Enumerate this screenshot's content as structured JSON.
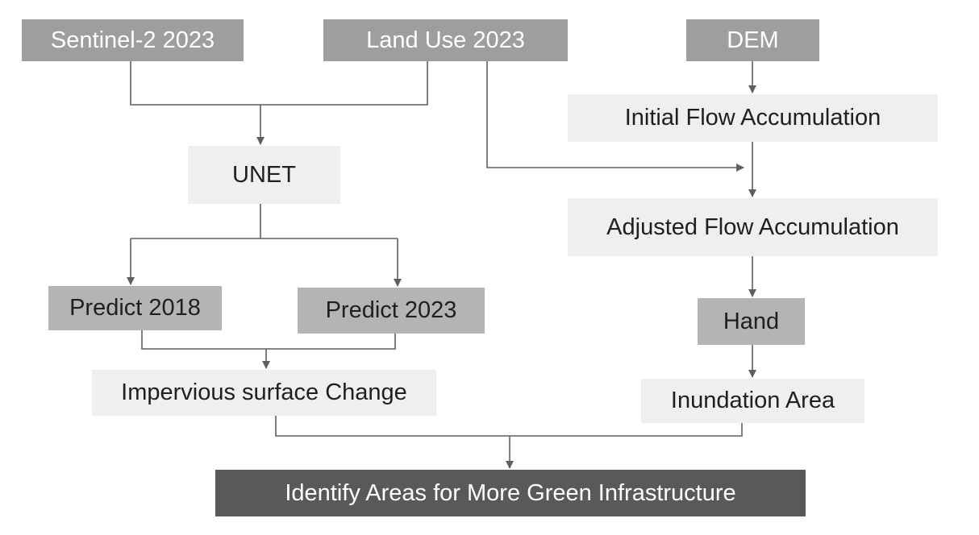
{
  "nodes": {
    "sentinel": "Sentinel-2 2023",
    "landuse": "Land Use 2023",
    "dem": "DEM",
    "unet": "UNET",
    "initial_flow": "Initial Flow Accumulation",
    "adjusted_flow": "Adjusted Flow Accumulation",
    "predict_2018": "Predict 2018",
    "predict_2023": "Predict 2023",
    "hand": "Hand",
    "impervious": "Impervious surface Change",
    "inundation": "Inundation Area",
    "identify": "Identify Areas for More Green Infrastructure"
  },
  "colors": {
    "dark_box": "#9e9e9e",
    "mid_box": "#b4b4b4",
    "light_box": "#efefef",
    "final_box": "#595959",
    "connector": "#5f5f5f"
  }
}
